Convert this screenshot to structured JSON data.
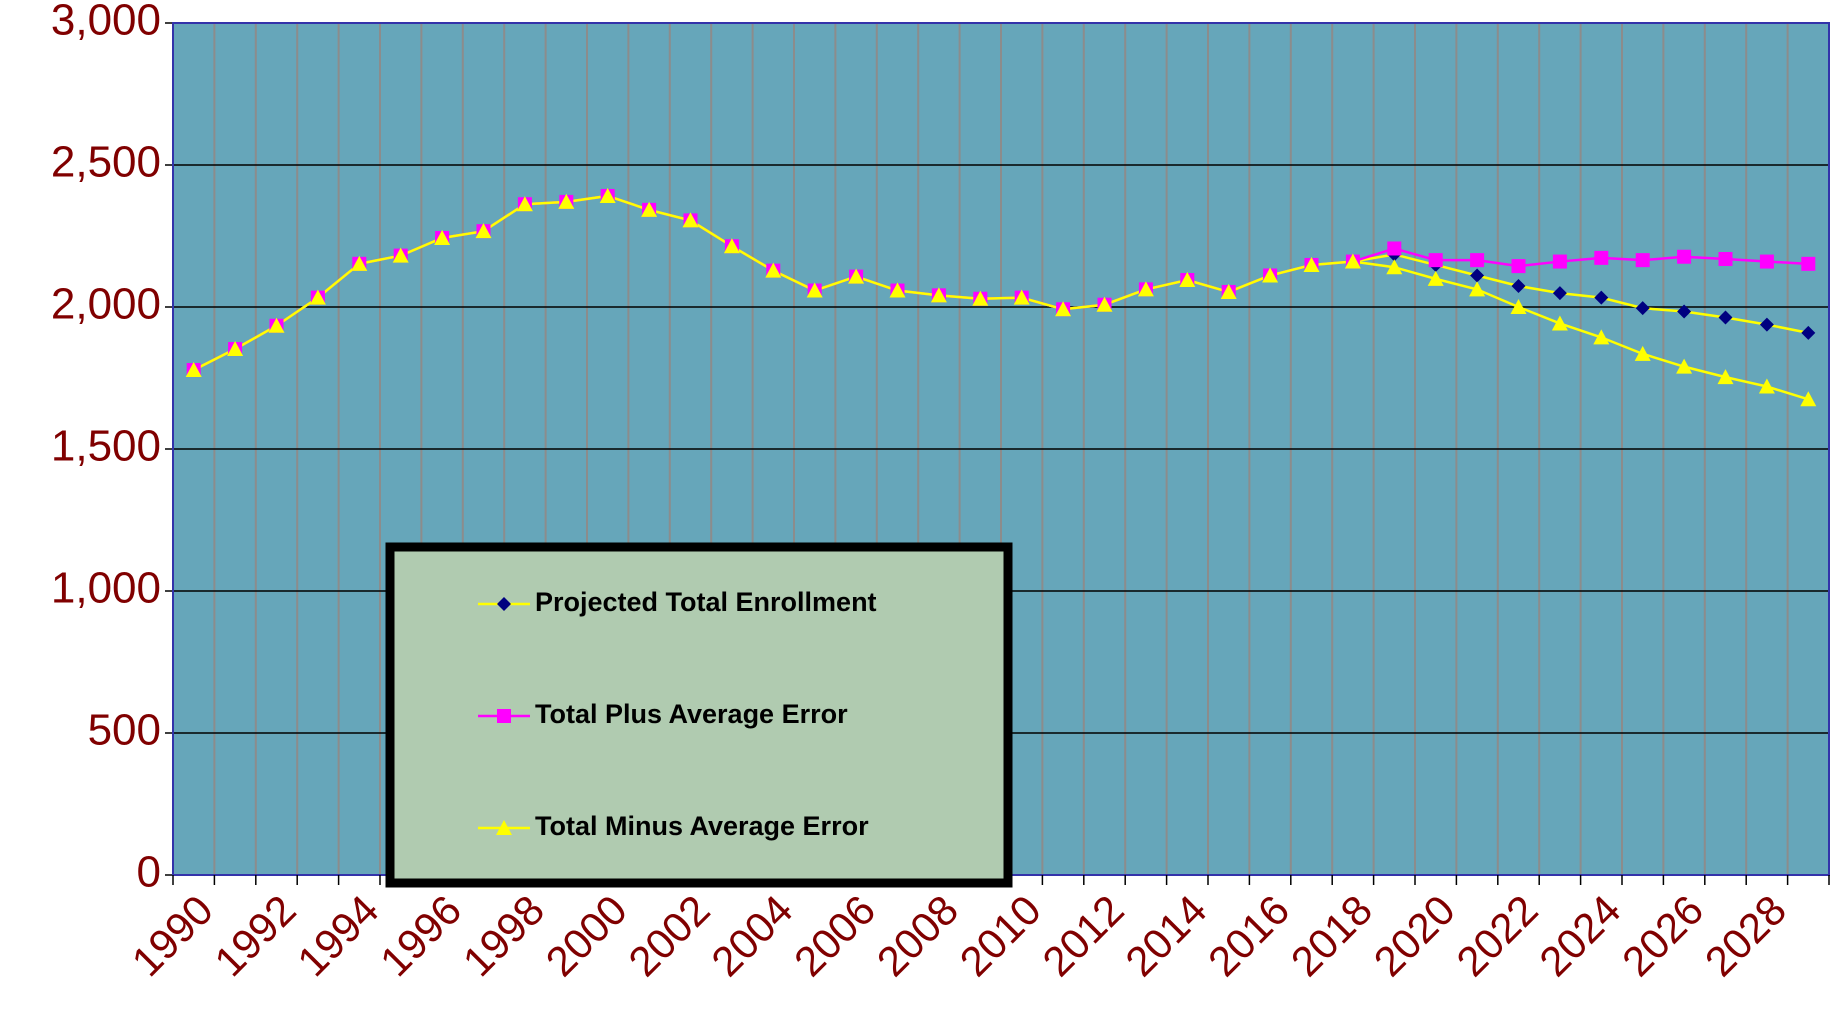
{
  "chart_data": {
    "type": "line",
    "categories": [
      "1990",
      null,
      "1992",
      null,
      "1994",
      null,
      "1996",
      null,
      "1998",
      null,
      "2000",
      null,
      "2002",
      null,
      "2004",
      null,
      "2006",
      null,
      "2008",
      null,
      "2010",
      null,
      "2012",
      null,
      "2014",
      null,
      "2016",
      null,
      "2018",
      null,
      "2020",
      null,
      "2022",
      null,
      "2024",
      null,
      "2026",
      null,
      "2028",
      null
    ],
    "series": [
      {
        "name": "Projected Total Enrollment",
        "color": "#000080",
        "line_color": "#ffff00",
        "marker": "diamond",
        "values": [
          1778,
          1852,
          1934,
          2033,
          2152,
          2181,
          2243,
          2267,
          2362,
          2370,
          2391,
          2342,
          2305,
          2214,
          2128,
          2058,
          2107,
          2058,
          2041,
          2029,
          2033,
          1992,
          2008,
          2062,
          2095,
          2053,
          2111,
          2148,
          2160,
          2185,
          2148,
          2111,
          2074,
          2049,
          2033,
          1996,
          1984,
          1963,
          1938,
          1909
        ]
      },
      {
        "name": "Total Plus Average Error",
        "color": "#ff00ff",
        "line_color": "#ff00ff",
        "marker": "square",
        "values": [
          1778,
          1852,
          1934,
          2033,
          2152,
          2181,
          2243,
          2267,
          2362,
          2370,
          2391,
          2342,
          2305,
          2214,
          2128,
          2058,
          2107,
          2058,
          2041,
          2029,
          2033,
          1992,
          2008,
          2062,
          2095,
          2053,
          2111,
          2148,
          2160,
          2206,
          2165,
          2165,
          2144,
          2160,
          2173,
          2165,
          2177,
          2169,
          2160,
          2152
        ]
      },
      {
        "name": "Total Minus Average Error",
        "color": "#ffff00",
        "line_color": "#ffff00",
        "marker": "triangle",
        "values": [
          1778,
          1852,
          1934,
          2033,
          2152,
          2181,
          2243,
          2267,
          2362,
          2370,
          2391,
          2342,
          2305,
          2214,
          2128,
          2058,
          2107,
          2058,
          2041,
          2029,
          2033,
          1992,
          2008,
          2062,
          2095,
          2053,
          2111,
          2148,
          2160,
          2140,
          2099,
          2062,
          2000,
          1942,
          1893,
          1835,
          1790,
          1753,
          1720,
          1675
        ]
      }
    ],
    "ylim": [
      0,
      3000
    ],
    "yticks": [
      0,
      500,
      {
        "value": 1000,
        "label": "1,000"
      },
      {
        "value": 1500,
        "label": "1,500"
      },
      {
        "value": 2000,
        "label": "2,000"
      },
      {
        "value": 2500,
        "label": "2,500"
      },
      {
        "value": 3000,
        "label": "3,000"
      }
    ],
    "grid": true,
    "plot_background": "#66a6ba"
  }
}
